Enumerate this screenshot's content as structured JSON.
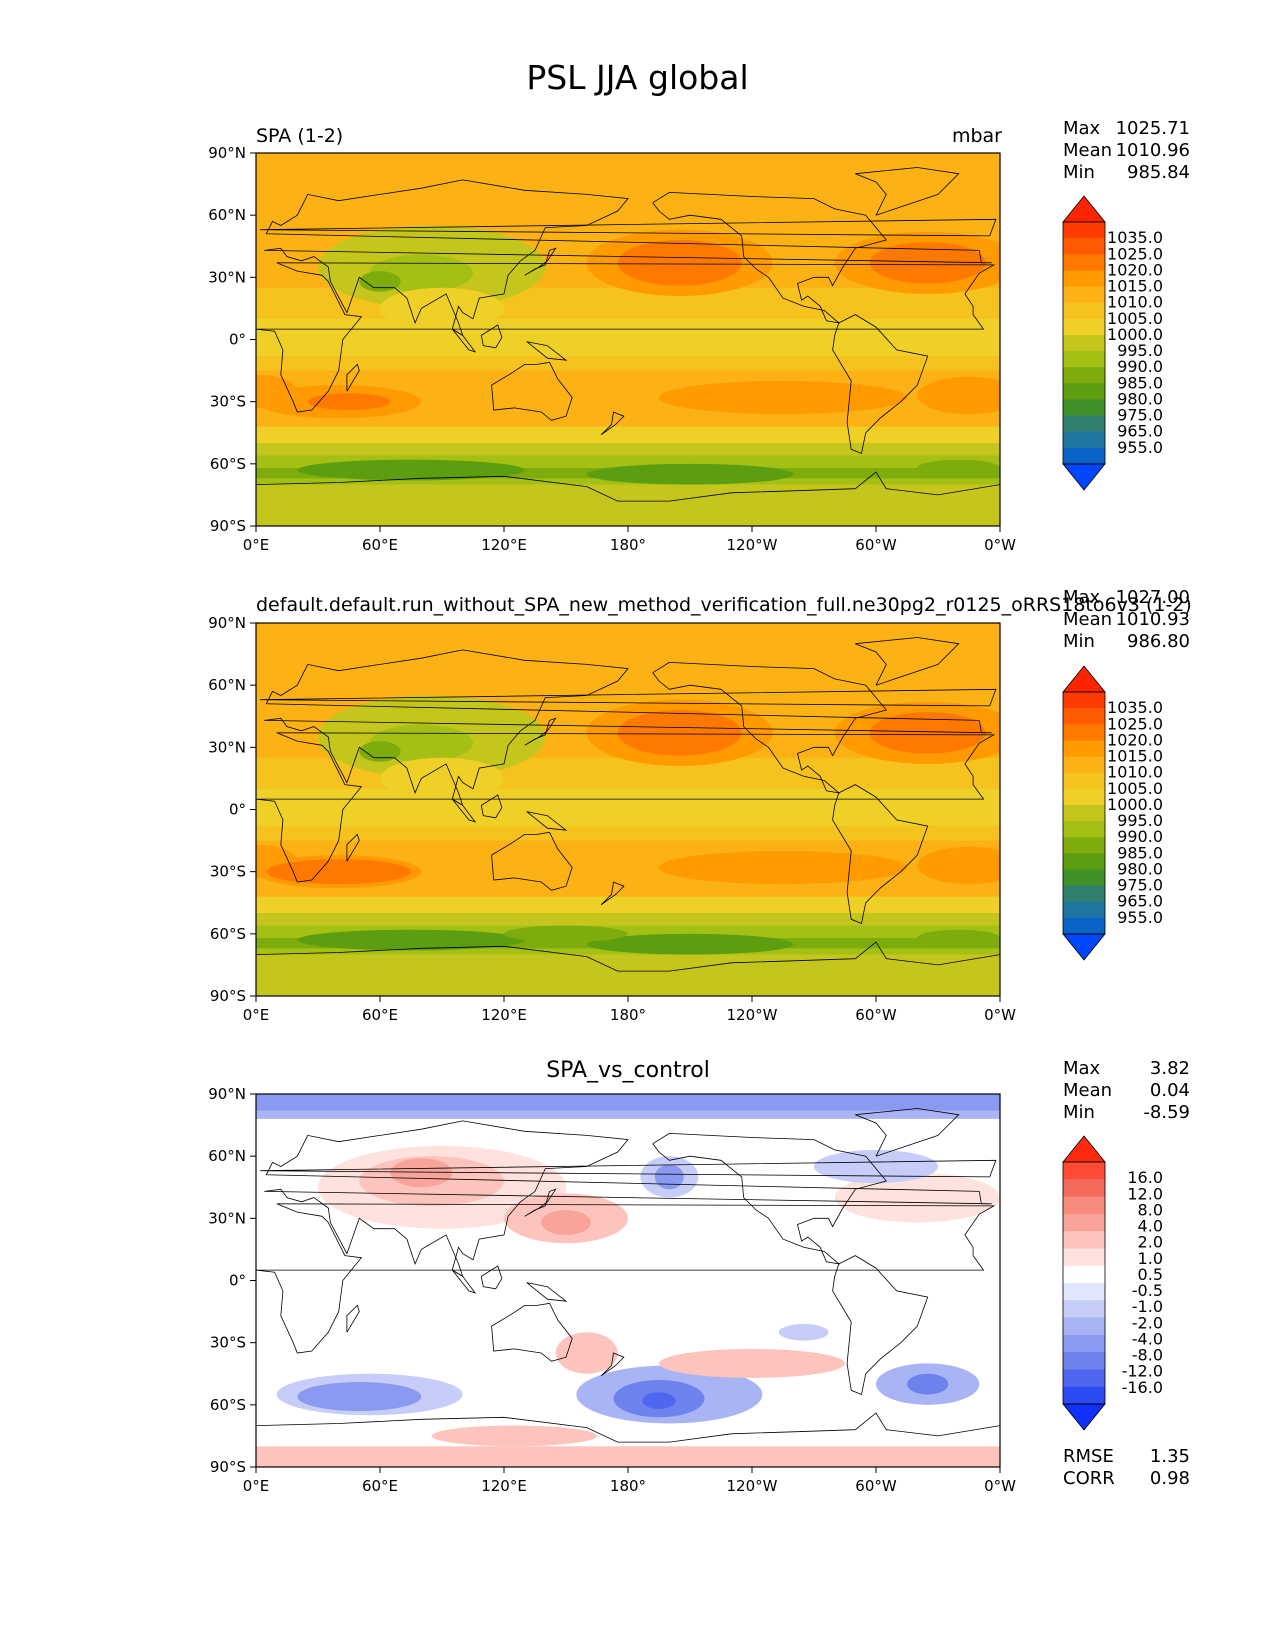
{
  "figure": {
    "title": "PSL JJA global"
  },
  "chart_data": [
    {
      "type": "heatmap",
      "map_projection": "plate-carree",
      "title_left": "SPA (1-2)",
      "title_right": "mbar",
      "stats": {
        "max_label": "Max",
        "max": "1025.71",
        "mean_label": "Mean",
        "mean": "1010.96",
        "min_label": "Min",
        "min": "985.84"
      },
      "x_ticks": [
        "0°E",
        "60°E",
        "120°E",
        "180°",
        "120°W",
        "60°W",
        "0°W"
      ],
      "y_ticks": [
        "90°N",
        "60°N",
        "30°N",
        "0°",
        "30°S",
        "60°S",
        "90°S"
      ],
      "colorbar": {
        "labels": [
          "1035.0",
          "1025.0",
          "1020.0",
          "1015.0",
          "1010.0",
          "1005.0",
          "1000.0",
          "995.0",
          "990.0",
          "985.0",
          "980.0",
          "975.0",
          "965.0",
          "955.0"
        ],
        "colors": [
          "#ff2400",
          "#ff3c00",
          "#ff5a00",
          "#ff7800",
          "#ff9a00",
          "#fcb114",
          "#f5c21e",
          "#eed026",
          "#c4c61e",
          "#a5c014",
          "#7dac0c",
          "#5c9e10",
          "#3f9128",
          "#317f6e",
          "#1e76a0",
          "#0a64c8",
          "#0046ff"
        ],
        "extend": "both"
      },
      "pattern": "reference"
    },
    {
      "type": "heatmap",
      "map_projection": "plate-carree",
      "title_left": "default.default.run_without_SPA_new_method_verification_full.ne30pg2_r0125_oRRS18to6v3 (1-2)",
      "title_right": "",
      "stats": {
        "max_label": "Max",
        "max": "1027.00",
        "mean_label": "Mean",
        "mean": "1010.93",
        "min_label": "Min",
        "min": "986.80"
      },
      "x_ticks": [
        "0°E",
        "60°E",
        "120°E",
        "180°",
        "120°W",
        "60°W",
        "0°W"
      ],
      "y_ticks": [
        "90°N",
        "60°N",
        "30°N",
        "0°",
        "30°S",
        "60°S",
        "90°S"
      ],
      "colorbar": {
        "labels": [
          "1035.0",
          "1025.0",
          "1020.0",
          "1015.0",
          "1010.0",
          "1005.0",
          "1000.0",
          "995.0",
          "990.0",
          "985.0",
          "980.0",
          "975.0",
          "965.0",
          "955.0"
        ],
        "colors": [
          "#ff2400",
          "#ff3c00",
          "#ff5a00",
          "#ff7800",
          "#ff9a00",
          "#fcb114",
          "#f5c21e",
          "#eed026",
          "#c4c61e",
          "#a5c014",
          "#7dac0c",
          "#5c9e10",
          "#3f9128",
          "#317f6e",
          "#1e76a0",
          "#0a64c8",
          "#0046ff"
        ],
        "extend": "both"
      },
      "pattern": "test"
    },
    {
      "type": "heatmap",
      "map_projection": "plate-carree",
      "title_center": "SPA_vs_control",
      "stats": {
        "max_label": "Max",
        "max": "3.82",
        "mean_label": "Mean",
        "mean": "0.04",
        "min_label": "Min",
        "min": "-8.59"
      },
      "extra_stats": {
        "rmse_label": "RMSE",
        "rmse": "1.35",
        "corr_label": "CORR",
        "corr": "0.98"
      },
      "x_ticks": [
        "0°E",
        "60°E",
        "120°E",
        "180°",
        "120°W",
        "60°W",
        "0°W"
      ],
      "y_ticks": [
        "90°N",
        "60°N",
        "30°N",
        "0°",
        "30°S",
        "60°S",
        "90°S"
      ],
      "colorbar": {
        "labels": [
          "16.0",
          "12.0",
          "8.0",
          "4.0",
          "2.0",
          "1.0",
          "0.5",
          "-0.5",
          "-1.0",
          "-2.0",
          "-4.0",
          "-8.0",
          "-12.0",
          "-16.0"
        ],
        "colors": [
          "#ff2a10",
          "#ff4a36",
          "#f36a5a",
          "#f78a7c",
          "#f8a49a",
          "#fcc4bc",
          "#fde2de",
          "#ffffff",
          "#e2e6fc",
          "#c6cdf8",
          "#a8b4f4",
          "#8a9af0",
          "#6e82ee",
          "#4f66ee",
          "#2c4af4",
          "#1030fc"
        ],
        "extend": "both"
      },
      "pattern": "diff"
    }
  ]
}
